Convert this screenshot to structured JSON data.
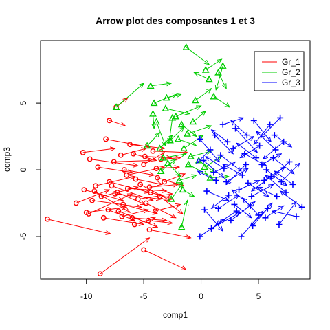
{
  "chart_data": {
    "type": "scatter",
    "title": "Arrow plot des composantes 1 et 3",
    "xlabel": "comp1",
    "ylabel": "comp3",
    "xlim": [
      -14,
      9.5
    ],
    "ylim": [
      -8.2,
      9.7
    ],
    "x_ticks": [
      -10,
      -5,
      0,
      5
    ],
    "y_ticks": [
      -5,
      0,
      5
    ],
    "grid": false,
    "legend_position": "top-right",
    "series": [
      {
        "name": "Gr_1",
        "color": "#ff0000",
        "marker": "circle",
        "arrows": [
          [
            -13.4,
            -3.7,
            -7.9,
            -4.8
          ],
          [
            -8.8,
            -7.8,
            -4.5,
            -5.1
          ],
          [
            -4.5,
            -4.5,
            -0.9,
            -5.1
          ],
          [
            -5.0,
            -6.0,
            -1.3,
            -7.5
          ],
          [
            -7.4,
            4.7,
            -6.4,
            5.4
          ],
          [
            -8.0,
            3.7,
            -6.6,
            3.3
          ],
          [
            -10.3,
            1.3,
            -7.5,
            1.6
          ],
          [
            -10.9,
            -2.5,
            -8.0,
            -1.5
          ],
          [
            -10.0,
            -3.2,
            -6.5,
            -2.8
          ],
          [
            -9.8,
            -3.3,
            -6.0,
            -1.8
          ],
          [
            -9.2,
            -1.2,
            -5.8,
            -0.5
          ],
          [
            -8.5,
            -3.6,
            -5.0,
            -4.1
          ],
          [
            -8.0,
            -0.9,
            -4.5,
            -1.7
          ],
          [
            -7.5,
            -1.8,
            -3.5,
            -2.2
          ],
          [
            -7.0,
            1.1,
            -4.8,
            1.6
          ],
          [
            -6.5,
            -0.4,
            -3.2,
            0.2
          ],
          [
            -6.0,
            -3.6,
            -3.0,
            -3.8
          ],
          [
            -5.5,
            -2.2,
            -2.5,
            -1.8
          ],
          [
            -5.0,
            0.4,
            -3.2,
            1.3
          ],
          [
            -4.5,
            -1.3,
            -2.0,
            -1.1
          ],
          [
            -4.0,
            -3.1,
            -1.8,
            -2.6
          ],
          [
            -3.5,
            0.8,
            -1.8,
            0.9
          ],
          [
            -9.5,
            -2.3,
            -5.2,
            -2.8
          ],
          [
            -10.2,
            -1.5,
            -6.8,
            -2.3
          ],
          [
            -7.8,
            -1.2,
            -4.2,
            -2.3
          ],
          [
            -6.8,
            -2.6,
            -3.8,
            -3.3
          ],
          [
            -5.8,
            -4.1,
            -4.0,
            -3.6
          ],
          [
            -9.0,
            0.2,
            -6.0,
            -0.2
          ],
          [
            -8.3,
            2.3,
            -4.5,
            1.7
          ],
          [
            -7.2,
            -3.1,
            -3.8,
            -4.3
          ],
          [
            -6.2,
            1.9,
            -3.2,
            1.6
          ],
          [
            -4.8,
            -2.5,
            -2.2,
            -3.6
          ],
          [
            -4.2,
            1.4,
            -1.2,
            1.3
          ],
          [
            -3.8,
            -0.6,
            -1.5,
            -1.2
          ],
          [
            -9.7,
            0.8,
            -5.5,
            0.3
          ],
          [
            -8.7,
            -2.0,
            -5.5,
            -1.3
          ],
          [
            -7.6,
            0.6,
            -4.4,
            0.7
          ],
          [
            -6.4,
            -1.4,
            -3.0,
            -1.6
          ],
          [
            -5.3,
            -1.1,
            -2.7,
            -2.3
          ],
          [
            -4.6,
            -3.8,
            -2.5,
            -4.0
          ],
          [
            -3.6,
            -2.0,
            -1.6,
            -3.3
          ],
          [
            -3.2,
            -0.9,
            -1.4,
            -0.3
          ],
          [
            -9.3,
            -1.6,
            -6.2,
            -3.2
          ],
          [
            -8.1,
            -3.0,
            -5.8,
            -3.8
          ],
          [
            -7.3,
            -1.7,
            -4.9,
            -2.6
          ],
          [
            -6.7,
            0.0,
            -4.1,
            -0.4
          ],
          [
            -5.7,
            -0.7,
            -3.4,
            -1.1
          ],
          [
            -4.9,
            1.0,
            -2.6,
            0.9
          ],
          [
            -4.4,
            -1.7,
            -2.4,
            -2.2
          ],
          [
            -3.9,
            0.1,
            -1.9,
            0.2
          ],
          [
            -6.9,
            -3.5,
            -4.6,
            -3.0
          ],
          [
            -5.9,
            1.2,
            -3.9,
            0.7
          ]
        ]
      },
      {
        "name": "Gr_2",
        "color": "#00cd00",
        "marker": "triangle",
        "arrows": [
          [
            -1.3,
            9.2,
            0.7,
            7.9
          ],
          [
            0.4,
            7.5,
            1.8,
            8.3
          ],
          [
            1.9,
            7.8,
            1.3,
            6.0
          ],
          [
            1.5,
            7.3,
            2.2,
            6.1
          ],
          [
            -4.4,
            6.3,
            -2.6,
            6.5
          ],
          [
            -4.1,
            5.0,
            -2.1,
            5.7
          ],
          [
            -3.1,
            4.6,
            -1.0,
            4.2
          ],
          [
            -2.2,
            4.0,
            0.0,
            4.8
          ],
          [
            -1.7,
            3.4,
            -0.4,
            2.5
          ],
          [
            -0.7,
            3.6,
            0.4,
            4.4
          ],
          [
            -1.2,
            2.7,
            0.9,
            3.3
          ],
          [
            -2.7,
            2.2,
            -1.5,
            3.2
          ],
          [
            -3.6,
            1.6,
            -2.5,
            2.6
          ],
          [
            -3.3,
            0.9,
            -1.3,
            1.2
          ],
          [
            -2.0,
            2.3,
            -0.4,
            1.8
          ],
          [
            -1.5,
            1.6,
            0.2,
            2.6
          ],
          [
            -0.9,
            1.0,
            0.9,
            1.4
          ],
          [
            -0.2,
            0.7,
            1.2,
            -0.2
          ],
          [
            0.3,
            0.2,
            1.8,
            1.0
          ],
          [
            0.8,
            -0.6,
            2.4,
            -0.5
          ],
          [
            -2.5,
            3.9,
            -2.8,
            2.0
          ],
          [
            -3.9,
            3.6,
            -3.1,
            1.8
          ],
          [
            -2.9,
            0.5,
            -1.8,
            -0.5
          ],
          [
            -1.9,
            -0.8,
            -0.4,
            -0.4
          ],
          [
            -1.6,
            -1.5,
            -0.6,
            -2.0
          ],
          [
            -1.7,
            -4.3,
            -1.2,
            -2.3
          ],
          [
            -2.6,
            -2.2,
            -1.6,
            -1.0
          ],
          [
            -3.5,
            -0.1,
            -2.2,
            0.8
          ],
          [
            -4.2,
            4.2,
            -4.1,
            3.1
          ],
          [
            -3.0,
            5.4,
            -1.7,
            5.7
          ],
          [
            -0.5,
            5.2,
            0.9,
            6.1
          ],
          [
            1.1,
            5.5,
            2.5,
            4.7
          ],
          [
            0.7,
            6.8,
            -0.6,
            7.3
          ],
          [
            -4.7,
            1.8,
            -3.6,
            2.8
          ],
          [
            -7.4,
            4.7,
            -5.0,
            6.5
          ],
          [
            -1.1,
            0.4,
            0.6,
            -0.4
          ]
        ]
      },
      {
        "name": "Gr_3",
        "color": "#0000ff",
        "marker": "plus",
        "arrows": [
          [
            0.9,
            -4.4,
            3.4,
            -3.2
          ],
          [
            -0.1,
            -5.0,
            2.1,
            -3.7
          ],
          [
            2.6,
            -3.8,
            4.7,
            -2.4
          ],
          [
            3.5,
            -5.0,
            5.4,
            -3.1
          ],
          [
            4.5,
            -4.2,
            6.2,
            -2.5
          ],
          [
            5.6,
            -3.6,
            7.2,
            -2.7
          ],
          [
            6.8,
            -4.1,
            8.3,
            -2.4
          ],
          [
            8.8,
            -2.8,
            6.9,
            -1.6
          ],
          [
            8.3,
            -3.5,
            6.2,
            -3.1
          ],
          [
            7.4,
            -1.7,
            5.6,
            -0.4
          ],
          [
            6.3,
            0.9,
            8.1,
            -0.3
          ],
          [
            7.2,
            2.1,
            5.4,
            0.8
          ],
          [
            6.0,
            3.4,
            4.6,
            1.9
          ],
          [
            4.6,
            3.7,
            6.1,
            2.1
          ],
          [
            3.0,
            3.1,
            4.9,
            1.3
          ],
          [
            1.2,
            2.6,
            2.8,
            1.2
          ],
          [
            -0.1,
            2.3,
            1.6,
            0.6
          ],
          [
            0.2,
            0.7,
            2.0,
            -0.6
          ],
          [
            1.1,
            -0.2,
            3.0,
            0.6
          ],
          [
            2.2,
            -0.9,
            4.1,
            0.1
          ],
          [
            3.3,
            -1.5,
            5.1,
            -0.8
          ],
          [
            4.4,
            -2.0,
            6.3,
            -1.1
          ],
          [
            5.5,
            -0.8,
            7.3,
            0.2
          ],
          [
            6.6,
            -2.0,
            4.9,
            -1.3
          ],
          [
            5.1,
            1.8,
            3.4,
            0.9
          ],
          [
            3.9,
            0.4,
            2.2,
            -1.1
          ],
          [
            2.8,
            1.6,
            4.6,
            2.5
          ],
          [
            1.7,
            1.1,
            3.5,
            -0.1
          ],
          [
            0.5,
            -1.6,
            2.4,
            -2.3
          ],
          [
            1.5,
            -2.9,
            3.3,
            -1.9
          ],
          [
            2.9,
            -2.6,
            4.4,
            -3.6
          ],
          [
            4.1,
            -1.0,
            5.9,
            -2.0
          ],
          [
            5.3,
            0.4,
            7.0,
            1.2
          ],
          [
            6.5,
            1.5,
            4.8,
            2.9
          ],
          [
            7.7,
            0.6,
            6.0,
            -0.7
          ],
          [
            4.0,
            2.6,
            2.6,
            3.7
          ],
          [
            2.3,
            2.1,
            0.9,
            3.0
          ],
          [
            3.6,
            -0.4,
            1.9,
            0.4
          ],
          [
            5.8,
            -2.9,
            4.3,
            -4.2
          ],
          [
            6.9,
            3.9,
            5.2,
            2.4
          ],
          [
            8.0,
            -1.1,
            6.4,
            -0.1
          ],
          [
            2.0,
            0.1,
            0.4,
            1.0
          ],
          [
            3.1,
            -3.1,
            1.3,
            -4.1
          ],
          [
            4.8,
            0.9,
            3.1,
            2.0
          ],
          [
            6.1,
            -0.5,
            4.4,
            -1.6
          ],
          [
            0.8,
            1.5,
            -0.4,
            0.5
          ],
          [
            1.9,
            3.4,
            3.7,
            3.9
          ],
          [
            5.0,
            -3.4,
            3.6,
            -2.1
          ],
          [
            7.0,
            -0.9,
            8.6,
            0.5
          ],
          [
            3.8,
            1.2,
            5.7,
            0.3
          ],
          [
            2.4,
            -1.9,
            0.9,
            -2.9
          ],
          [
            4.3,
            -2.7,
            2.7,
            -1.5
          ],
          [
            6.4,
            2.6,
            7.9,
            1.7
          ],
          [
            5.7,
            0.0,
            7.5,
            -1.2
          ],
          [
            1.3,
            -0.8,
            -0.3,
            -0.1
          ],
          [
            0.3,
            -3.0,
            1.9,
            -4.6
          ]
        ]
      }
    ]
  }
}
